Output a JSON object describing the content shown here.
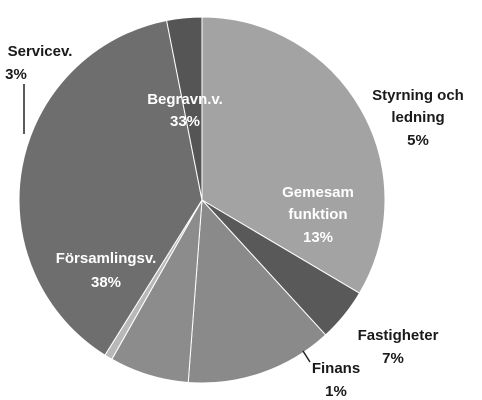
{
  "chart_data": {
    "type": "pie",
    "title": "",
    "start_angle_deg": 0,
    "direction": "clockwise",
    "slices": [
      {
        "name": "Begravn.v.",
        "label": "Begravn.v.",
        "pct_text": "33%",
        "value": 33.5,
        "color": "#a3a3a3"
      },
      {
        "name": "Styrning och ledning",
        "label_lines": [
          "Styrning och",
          "ledning"
        ],
        "pct_text": "5%",
        "value": 4.7,
        "color": "#595959"
      },
      {
        "name": "Gemesam funktion",
        "label_lines": [
          "Gemesam",
          "funktion"
        ],
        "pct_text": "13%",
        "value": 13.0,
        "color": "#8a8a8a"
      },
      {
        "name": "Fastigheter",
        "label": "Fastigheter",
        "pct_text": "7%",
        "value": 7.0,
        "color": "#8c8c8c"
      },
      {
        "name": "Finans",
        "label": "Finans",
        "pct_text": "1%",
        "value": 0.7,
        "color": "#b8b8b8"
      },
      {
        "name": "Församlingsv.",
        "label": "Församlingsv.",
        "pct_text": "38%",
        "value": 38.0,
        "color": "#6e6e6e"
      },
      {
        "name": "Servicev.",
        "label": "Servicev.",
        "pct_text": "3%",
        "value": 3.1,
        "color": "#555555"
      }
    ],
    "inside_label_color": "#ffffff",
    "outside_label_color": "#1a1a1a",
    "edge_color": "#ffffff"
  }
}
